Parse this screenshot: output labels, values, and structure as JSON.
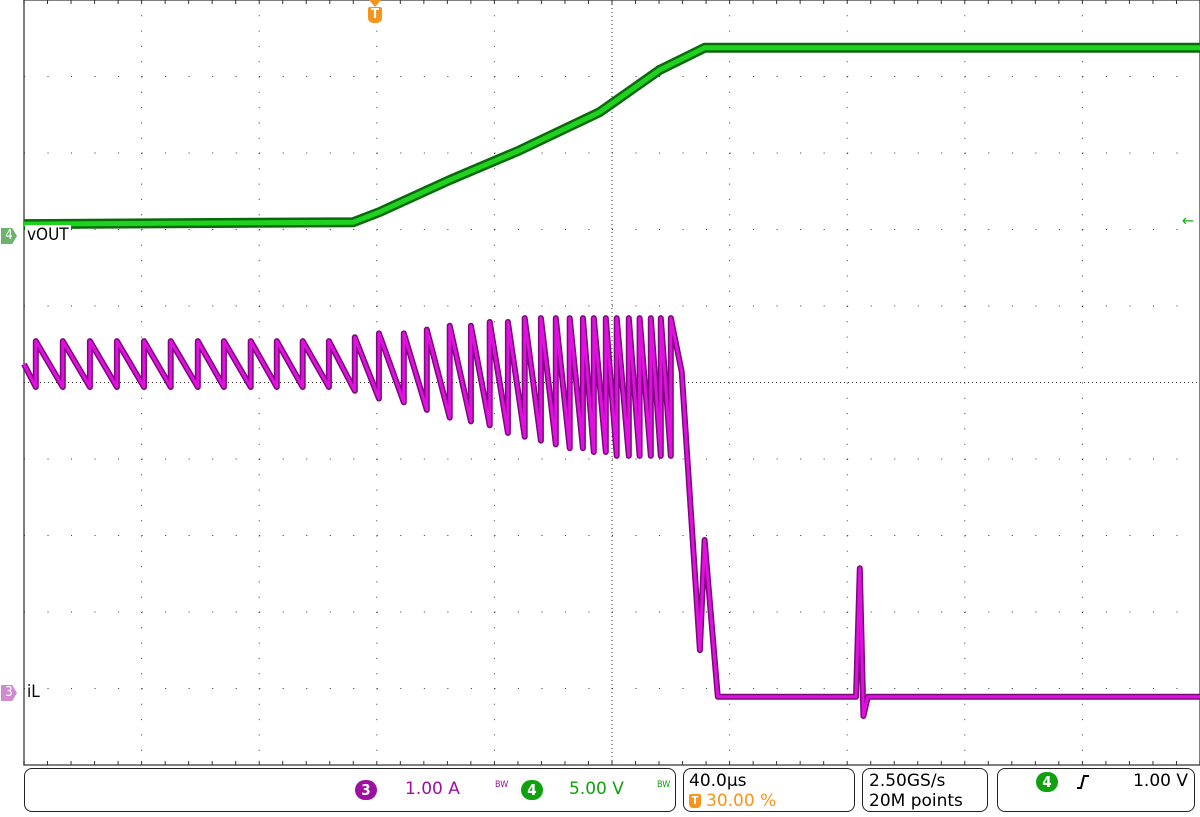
{
  "chart_data": {
    "type": "line",
    "x_unit": "µs",
    "xlim": [
      -120,
      280
    ],
    "grid": true,
    "series": [
      {
        "name": "vOUT",
        "channel": "4",
        "unit": "V",
        "scale_per_div": 5.0,
        "color": "#1fd21f",
        "points": [
          [
            -120,
            0.78
          ],
          [
            -8,
            0.9
          ],
          [
            1,
            1.57
          ],
          [
            24.8,
            3.66
          ],
          [
            48.6,
            5.6
          ],
          [
            75.8,
            8.1
          ],
          [
            96.2,
            10.85
          ],
          [
            111.5,
            12.3
          ],
          [
            280,
            12.3
          ]
        ]
      },
      {
        "name": "iL",
        "channel": "3",
        "unit": "A",
        "scale_per_div": 1.0,
        "color": "#e010e0",
        "points": [
          [
            -120,
            4.3
          ],
          [
            -116,
            4.0
          ],
          [
            -116,
            4.6
          ],
          [
            -106.8,
            4.0
          ],
          [
            -106.8,
            4.6
          ],
          [
            -97.6,
            4.0
          ],
          [
            -97.6,
            4.6
          ],
          [
            -88.4,
            4.0
          ],
          [
            -88.4,
            4.6
          ],
          [
            -79.2,
            4.0
          ],
          [
            -79.2,
            4.6
          ],
          [
            -70.1,
            4.0
          ],
          [
            -70.1,
            4.6
          ],
          [
            -60.9,
            4.0
          ],
          [
            -60.9,
            4.6
          ],
          [
            -52.0,
            4.0
          ],
          [
            -52.0,
            4.6
          ],
          [
            -42.9,
            4.0
          ],
          [
            -42.9,
            4.6
          ],
          [
            -34.0,
            4.0
          ],
          [
            -34.0,
            4.6
          ],
          [
            -25.2,
            4.0
          ],
          [
            -25.2,
            4.6
          ],
          [
            -16.3,
            4.0
          ],
          [
            -16.3,
            4.6
          ],
          [
            -7.5,
            3.95
          ],
          [
            -7.5,
            4.65
          ],
          [
            0.7,
            3.85
          ],
          [
            0.7,
            4.7
          ],
          [
            9.2,
            3.8
          ],
          [
            9.2,
            4.7
          ],
          [
            17.0,
            3.7
          ],
          [
            17.0,
            4.75
          ],
          [
            24.8,
            3.6
          ],
          [
            24.8,
            4.8
          ],
          [
            32.0,
            3.55
          ],
          [
            32.0,
            4.8
          ],
          [
            38.4,
            3.5
          ],
          [
            38.4,
            4.85
          ],
          [
            44.6,
            3.4
          ],
          [
            44.6,
            4.85
          ],
          [
            50.3,
            3.35
          ],
          [
            50.3,
            4.9
          ],
          [
            55.8,
            3.3
          ],
          [
            55.8,
            4.9
          ],
          [
            60.9,
            3.25
          ],
          [
            60.9,
            4.9
          ],
          [
            65.6,
            3.2
          ],
          [
            65.6,
            4.9
          ],
          [
            70.1,
            3.2
          ],
          [
            70.1,
            4.9
          ],
          [
            73.8,
            3.15
          ],
          [
            73.8,
            4.9
          ],
          [
            77.9,
            3.15
          ],
          [
            77.9,
            4.9
          ],
          [
            81.6,
            3.1
          ],
          [
            81.6,
            4.9
          ],
          [
            85.7,
            3.1
          ],
          [
            85.7,
            4.9
          ],
          [
            89.4,
            3.1
          ],
          [
            89.4,
            4.9
          ],
          [
            93.2,
            3.1
          ],
          [
            93.2,
            4.9
          ],
          [
            96.6,
            3.1
          ],
          [
            96.6,
            4.9
          ],
          [
            100.0,
            3.1
          ],
          [
            100.0,
            4.9
          ],
          [
            103.7,
            4.2
          ],
          [
            109.9,
            0.56
          ],
          [
            111.5,
            2.0
          ],
          [
            116.0,
            -0.05
          ],
          [
            163.0,
            -0.05
          ],
          [
            164.3,
            1.63
          ],
          [
            165.5,
            -0.3
          ],
          [
            167.0,
            -0.05
          ],
          [
            280,
            -0.05
          ]
        ]
      }
    ],
    "trigger_marker": "T"
  },
  "traces": {
    "ch4_label": "vOUT",
    "ch4_marker": "4",
    "ch3_label": "iL",
    "ch3_marker": "3",
    "trigger_marker": "T"
  },
  "status": {
    "ch3_num": "3",
    "ch3_scale": "1.00 A",
    "ch3_bw": "BW",
    "ch4_num": "4",
    "ch4_scale": "5.00 V",
    "ch4_bw": "BW",
    "timebase": "40.0µs",
    "trigger_pos_icon": "T",
    "trigger_pos": "30.00 %",
    "sample_rate": "2.50GS/s",
    "record_length": "20M points",
    "trig_source": "4",
    "trig_slope_icon": "rising-edge-icon",
    "trig_level": "1.00 V"
  },
  "colors": {
    "ch3": "#a010a0",
    "ch4": "#10a010",
    "trigger": "#f7941d"
  }
}
